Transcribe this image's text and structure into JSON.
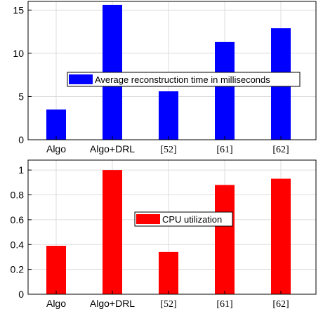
{
  "chart_data": [
    {
      "type": "bar",
      "categories": [
        "Algo",
        "Algo+DRL",
        "[52]",
        "[61]",
        "[62]"
      ],
      "series": [
        {
          "name": "Average reconstruction time in milliseconds",
          "values": [
            3.5,
            15.6,
            5.6,
            11.3,
            12.9
          ]
        }
      ],
      "yticks": [
        "0",
        "5",
        "10",
        "15"
      ],
      "ylim": [
        0,
        16
      ],
      "grid": true,
      "legend_position": "center",
      "color": "#0000ff"
    },
    {
      "type": "bar",
      "categories": [
        "Algo",
        "Algo+DRL",
        "[52]",
        "[61]",
        "[62]"
      ],
      "series": [
        {
          "name": "CPU utilization",
          "values": [
            0.39,
            1.0,
            0.34,
            0.88,
            0.93
          ]
        }
      ],
      "yticks": [
        "0",
        "0.2",
        "0.4",
        "0.6",
        "0.8",
        "1"
      ],
      "ylim": [
        0,
        1.08
      ],
      "grid": true,
      "legend_position": "center",
      "color": "#ff0000"
    }
  ]
}
